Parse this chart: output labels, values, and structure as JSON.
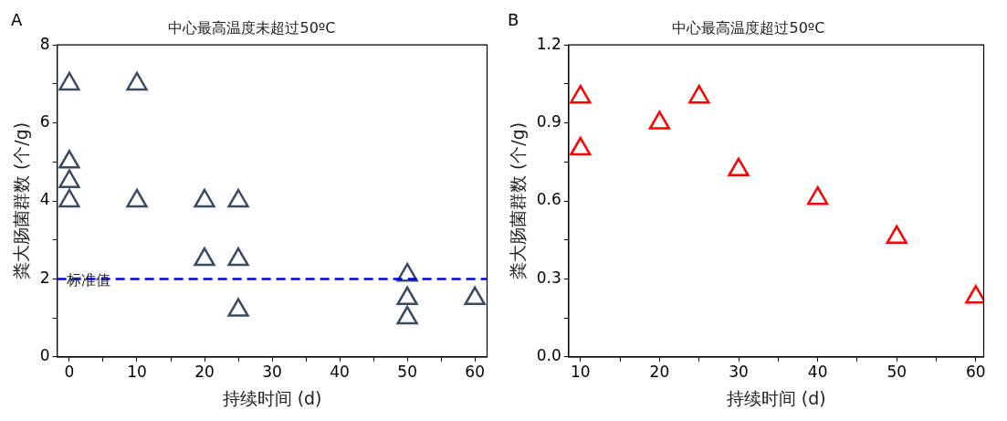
{
  "chart_data": [
    {
      "type": "scatter",
      "title": "中心最高温度未超过50ºC",
      "xlabel": "持续时间 (d)",
      "ylabel": "粪大肠菌群数 (个/g)",
      "annotations": [
        "A"
      ],
      "x": [
        0,
        0,
        0,
        0,
        10,
        10,
        20,
        20,
        25,
        25,
        25,
        50,
        50,
        50,
        60
      ],
      "series": [
        {
          "color": "#3a4b61",
          "values": [
            7,
            5,
            4.5,
            4,
            7,
            4,
            4,
            2.5,
            4,
            2.5,
            1.2,
            2.1,
            1.5,
            1,
            1.5
          ]
        }
      ],
      "xlim": [
        -1.8,
        61.8
      ],
      "xticks": [
        0,
        {
          "value": 5,
          "label": null
        },
        10,
        {
          "value": 15,
          "label": null
        },
        20,
        {
          "value": 25,
          "label": null
        },
        30,
        {
          "value": 35,
          "label": null
        },
        40,
        {
          "value": 45,
          "label": null
        },
        50,
        {
          "value": 55,
          "label": null
        },
        60
      ],
      "ylim": [
        0,
        8
      ],
      "yticks": [
        0,
        {
          "value": 1,
          "label": null
        },
        2,
        {
          "value": 3,
          "label": null
        },
        4,
        {
          "value": 5,
          "label": null
        },
        6,
        {
          "value": 7,
          "label": null
        },
        8
      ],
      "ref_lines": [
        {
          "axis": "y",
          "value": 2,
          "label": "标准值",
          "color": "#0000ee",
          "line_style": "dashed"
        }
      ],
      "marker": "triangle",
      "grid": false,
      "legend": false
    },
    {
      "type": "scatter",
      "title": "中心最高温度超过50ºC",
      "xlabel": "持续时间 (d)",
      "ylabel": "粪大肠菌群数 (个/g)",
      "annotations": [
        "B"
      ],
      "x": [
        10,
        10,
        20,
        25,
        30,
        40,
        50,
        60
      ],
      "series": [
        {
          "color": "#ff0000",
          "values": [
            1.0,
            0.8,
            0.9,
            1.0,
            0.72,
            0.61,
            0.46,
            0.23
          ]
        }
      ],
      "xlim": [
        8.5,
        61
      ],
      "xticks": [
        10,
        {
          "value": 15,
          "label": null
        },
        20,
        {
          "value": 25,
          "label": null
        },
        30,
        {
          "value": 35,
          "label": null
        },
        40,
        {
          "value": 45,
          "label": null
        },
        50,
        {
          "value": 55,
          "label": null
        },
        60
      ],
      "ylim": [
        0,
        1.2
      ],
      "yticks": [
        {
          "value": 0,
          "label": "0.0"
        },
        {
          "value": 0.15,
          "label": null
        },
        0.3,
        {
          "value": 0.45,
          "label": null
        },
        0.6,
        {
          "value": 0.75,
          "label": null
        },
        0.9,
        {
          "value": 1.05,
          "label": null
        },
        1.2
      ],
      "marker": "triangle",
      "grid": false,
      "legend": false
    }
  ]
}
